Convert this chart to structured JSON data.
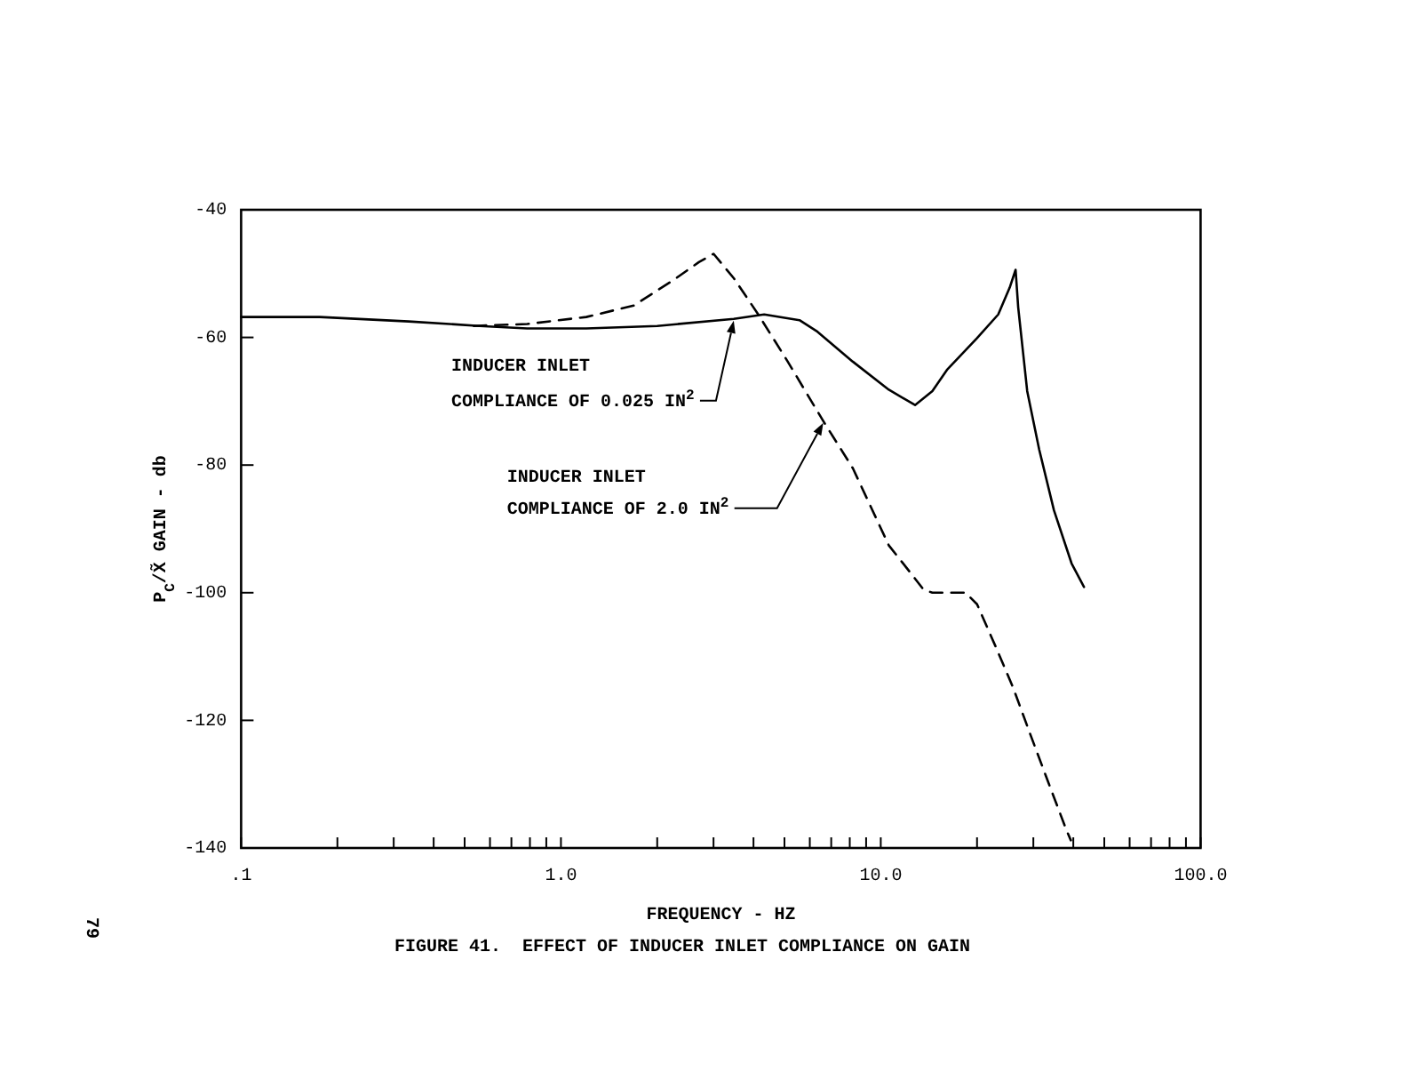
{
  "chart_data": {
    "type": "line",
    "title": "FIGURE 41.  EFFECT OF INDUCER INLET COMPLIANCE ON GAIN",
    "xlabel": "FREQUENCY - HZ",
    "ylabel": "P$_{C}$/X̃ GAIN - db",
    "log": "x",
    "xlim": [
      0.1,
      100
    ],
    "ylim": [
      -140,
      -40
    ],
    "xticks": [
      {
        "value": 0.1,
        "label": ".1"
      },
      {
        "value": 0.2,
        "label": null
      },
      {
        "value": 0.3,
        "label": null
      },
      {
        "value": 0.4,
        "label": null
      },
      {
        "value": 0.5,
        "label": null
      },
      {
        "value": 0.6,
        "label": null
      },
      {
        "value": 0.7,
        "label": null
      },
      {
        "value": 0.8,
        "label": null
      },
      {
        "value": 0.9,
        "label": null
      },
      {
        "value": 1,
        "label": "1.0"
      },
      {
        "value": 2,
        "label": null
      },
      {
        "value": 3,
        "label": null
      },
      {
        "value": 4,
        "label": null
      },
      {
        "value": 5,
        "label": null
      },
      {
        "value": 6,
        "label": null
      },
      {
        "value": 7,
        "label": null
      },
      {
        "value": 8,
        "label": null
      },
      {
        "value": 9,
        "label": null
      },
      {
        "value": 10,
        "label": "10.0"
      },
      {
        "value": 20,
        "label": null
      },
      {
        "value": 30,
        "label": null
      },
      {
        "value": 40,
        "label": null
      },
      {
        "value": 50,
        "label": null
      },
      {
        "value": 60,
        "label": null
      },
      {
        "value": 70,
        "label": null
      },
      {
        "value": 80,
        "label": null
      },
      {
        "value": 90,
        "label": null
      },
      {
        "value": 100,
        "label": "100.0"
      }
    ],
    "yticks": [
      -140,
      -120,
      -100,
      -80,
      -60,
      -40
    ],
    "series": [
      {
        "color": "#000000",
        "line_style": "solid",
        "x": [
          0.1,
          0.176,
          0.334,
          0.557,
          0.784,
          1.2,
          2.0,
          3.47,
          4.32,
          5.57,
          6.34,
          8.18,
          10.6,
          12.8,
          14.5,
          16.1,
          20.0,
          23.3,
          25.3,
          26.4,
          26.9,
          28.7,
          31.3,
          34.8,
          39.5,
          43.2
        ],
        "values": [
          -56.8,
          -56.8,
          -57.5,
          -58.2,
          -58.6,
          -58.6,
          -58.2,
          -57.1,
          -56.4,
          -57.3,
          -59.1,
          -63.8,
          -68.2,
          -70.6,
          -68.4,
          -65.1,
          -60.1,
          -56.4,
          -52.2,
          -49.4,
          -55.3,
          -68.4,
          -77.6,
          -87.1,
          -95.4,
          -99.1
        ]
      },
      {
        "color": "#000000",
        "line_style": "dashed",
        "x": [
          0.534,
          0.784,
          1.2,
          1.69,
          2.28,
          2.7,
          3.0,
          3.48,
          4.14,
          5.12,
          6.61,
          8.18,
          10.6,
          12.0,
          13.6,
          14.5,
          18.4,
          20.0,
          22.8,
          25.9,
          29.4,
          33.4,
          38.0,
          39.3
        ],
        "values": [
          -58.2,
          -57.9,
          -56.8,
          -55.0,
          -50.8,
          -48.2,
          -46.9,
          -50.8,
          -56.4,
          -63.8,
          -73.1,
          -80.5,
          -92.6,
          -96.0,
          -99.5,
          -100.0,
          -100.0,
          -101.8,
          -108.3,
          -114.8,
          -122.3,
          -129.7,
          -137.1,
          -138.8
        ]
      }
    ],
    "annotations": [
      {
        "text": "INDUCER INLET\nCOMPLIANCE OF 0.025 IN$^{2}$",
        "x": 3.47,
        "y": -57.1
      },
      {
        "text": "INDUCER INLET\nCOMPLIANCE OF 2.0 IN$^{2}$",
        "x": 6.61,
        "y": -73.1
      },
      "79"
    ]
  }
}
